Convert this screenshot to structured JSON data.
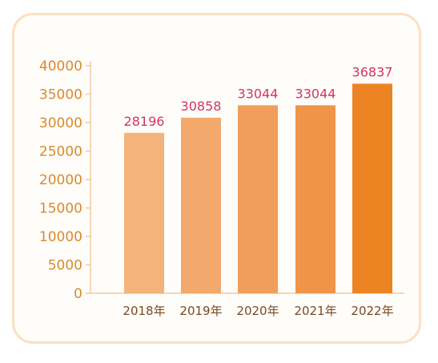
{
  "chart_data": {
    "type": "bar",
    "title": "",
    "xlabel": "",
    "ylabel": "",
    "categories": [
      "2018年",
      "2019年",
      "2020年",
      "2021年",
      "2022年"
    ],
    "values": [
      28196,
      30858,
      33044,
      33044,
      36837
    ],
    "data_labels": [
      "28196",
      "30858",
      "33044",
      "33044",
      "36837"
    ],
    "ylim": [
      0,
      40000
    ],
    "yticks": [
      0,
      5000,
      10000,
      15000,
      20000,
      25000,
      30000,
      35000,
      40000
    ],
    "ytick_labels": [
      "0",
      "5000",
      "10000",
      "15000",
      "20000",
      "25000",
      "30000",
      "35000",
      "40000"
    ],
    "grid": false,
    "colors": {
      "bars": [
        "#f4b37a",
        "#f3a96b",
        "#f19e5c",
        "#ef9448",
        "#ec8424"
      ],
      "axis": "#f2c9a0",
      "tick_text": "#d9892c",
      "category_text": "#7a4a20",
      "data_label_text": "#d2336b",
      "frame": "#fbe0c2"
    }
  }
}
